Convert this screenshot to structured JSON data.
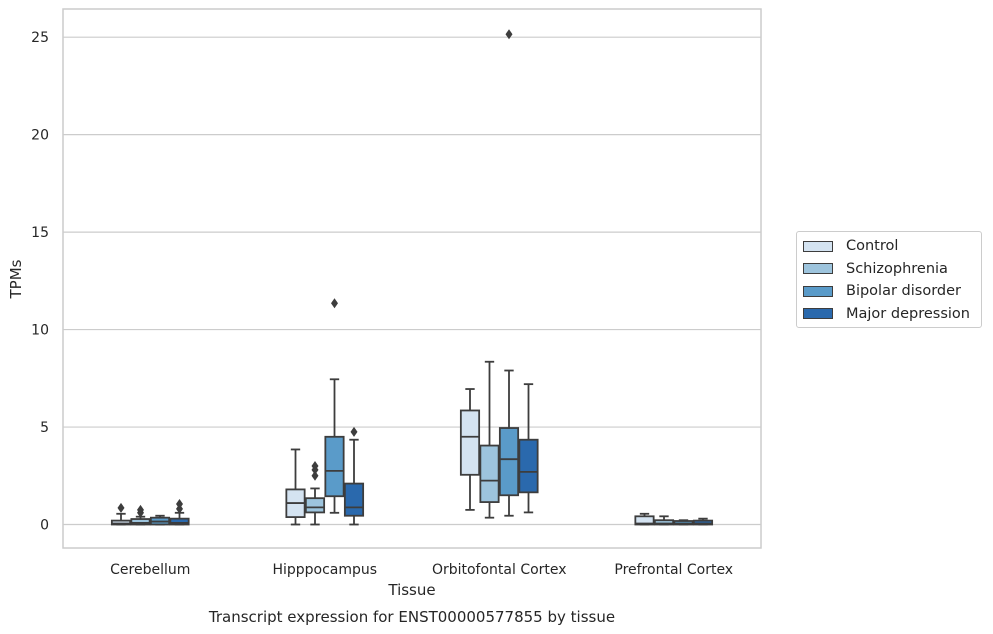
{
  "chart_data": {
    "type": "box",
    "title": "Transcript expression for ENST00000577855 by tissue",
    "xlabel": "Tissue",
    "ylabel": "TPMs",
    "ylim": [
      -1.2,
      26.4
    ],
    "yticks": [
      0,
      5,
      10,
      15,
      20,
      25
    ],
    "grid": true,
    "legend_position": "right",
    "categories": [
      "Cerebellum",
      "Hipppocampus",
      "Orbitofontal Cortex",
      "Prefrontal Cortex"
    ],
    "series": [
      {
        "name": "Control",
        "color": "#d4e3f1",
        "boxes": [
          {
            "min": 0.0,
            "q1": 0.0,
            "median": 0.05,
            "q3": 0.2,
            "max": 0.55,
            "outliers": [
              0.85
            ]
          },
          {
            "min": 0.0,
            "q1": 0.38,
            "median": 1.1,
            "q3": 1.8,
            "max": 3.85,
            "outliers": []
          },
          {
            "min": 0.75,
            "q1": 2.55,
            "median": 4.5,
            "q3": 5.85,
            "max": 6.95,
            "outliers": []
          },
          {
            "min": 0.0,
            "q1": 0.0,
            "median": 0.05,
            "q3": 0.42,
            "max": 0.55,
            "outliers": []
          }
        ]
      },
      {
        "name": "Schizophrenia",
        "color": "#9dc4dd",
        "boxes": [
          {
            "min": 0.0,
            "q1": 0.0,
            "median": 0.08,
            "q3": 0.28,
            "max": 0.4,
            "outliers": [
              0.6,
              0.75
            ]
          },
          {
            "min": 0.0,
            "q1": 0.62,
            "median": 0.88,
            "q3": 1.35,
            "max": 1.85,
            "outliers": [
              2.5,
              2.8,
              3.0
            ]
          },
          {
            "min": 0.35,
            "q1": 1.15,
            "median": 2.25,
            "q3": 4.05,
            "max": 8.35,
            "outliers": []
          },
          {
            "min": 0.0,
            "q1": 0.0,
            "median": 0.05,
            "q3": 0.22,
            "max": 0.42,
            "outliers": []
          }
        ]
      },
      {
        "name": "Bipolar disorder",
        "color": "#5a9bc9",
        "boxes": [
          {
            "min": 0.0,
            "q1": 0.0,
            "median": 0.15,
            "q3": 0.35,
            "max": 0.45,
            "outliers": []
          },
          {
            "min": 0.6,
            "q1": 1.45,
            "median": 2.75,
            "q3": 4.5,
            "max": 7.45,
            "outliers": [
              11.35
            ]
          },
          {
            "min": 0.45,
            "q1": 1.5,
            "median": 3.35,
            "q3": 4.95,
            "max": 7.9,
            "outliers": [
              25.15
            ]
          },
          {
            "min": 0.0,
            "q1": 0.0,
            "median": 0.05,
            "q3": 0.18,
            "max": 0.22,
            "outliers": []
          }
        ]
      },
      {
        "name": "Major depression",
        "color": "#2a69ad",
        "boxes": [
          {
            "min": 0.0,
            "q1": 0.0,
            "median": 0.08,
            "q3": 0.3,
            "max": 0.6,
            "outliers": [
              0.8,
              1.05
            ]
          },
          {
            "min": 0.0,
            "q1": 0.45,
            "median": 0.88,
            "q3": 2.1,
            "max": 4.35,
            "outliers": [
              4.75
            ]
          },
          {
            "min": 0.62,
            "q1": 1.65,
            "median": 2.7,
            "q3": 4.35,
            "max": 7.2,
            "outliers": []
          },
          {
            "min": 0.0,
            "q1": 0.0,
            "median": 0.05,
            "q3": 0.2,
            "max": 0.3,
            "outliers": []
          }
        ]
      }
    ]
  }
}
